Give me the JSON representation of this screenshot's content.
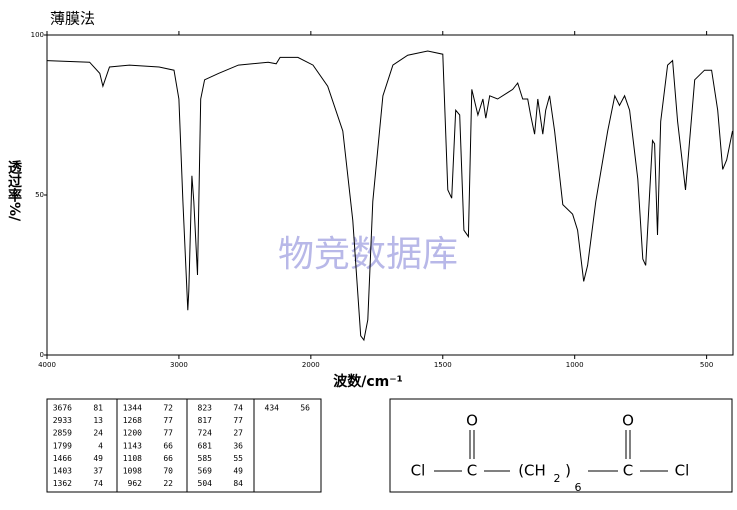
{
  "chart_data": {
    "type": "line",
    "title": "薄膜法",
    "x_label": "波数/cm⁻¹",
    "y_label": "透过率%/",
    "watermark": "物竞数据库",
    "xlim": [
      4000,
      400
    ],
    "xticks": [
      4000,
      3000,
      2000,
      1500,
      1000,
      500
    ],
    "ylim": [
      0,
      100
    ],
    "yticks": [
      0,
      50,
      100
    ],
    "color": "#000000",
    "x": [
      4000,
      3677,
      3600,
      3576,
      3526,
      3376,
      3150,
      3037,
      3000,
      2970,
      2933,
      2925,
      2902,
      2887,
      2859,
      2835,
      2805,
      2700,
      2549,
      2323,
      2263,
      2233,
      2098,
      1992,
      1936,
      1879,
      1841,
      1811,
      1799,
      1784,
      1765,
      1727,
      1689,
      1633,
      1557,
      1500,
      1481,
      1466,
      1451,
      1436,
      1420,
      1403,
      1390,
      1367,
      1348,
      1337,
      1322,
      1292,
      1235,
      1216,
      1197,
      1178,
      1167,
      1152,
      1140,
      1121,
      1110,
      1095,
      1076,
      1045,
      1008,
      989,
      966,
      951,
      920,
      875,
      848,
      830,
      811,
      792,
      761,
      742,
      731,
      705,
      697,
      686,
      674,
      648,
      629,
      610,
      580,
      545,
      508,
      481,
      458,
      439,
      424,
      402
    ],
    "values": [
      92,
      91.5,
      88,
      84,
      90,
      90.6,
      90,
      89,
      80,
      48,
      14,
      20,
      56,
      48,
      25,
      80,
      86,
      88,
      90.6,
      91.5,
      91,
      93,
      93,
      90.6,
      84,
      70,
      42,
      6,
      4.7,
      11,
      48,
      81,
      90.6,
      93.7,
      95,
      94,
      51.6,
      49,
      76.5,
      75,
      39,
      37,
      83,
      75,
      80,
      74,
      81,
      80,
      83,
      85,
      80,
      80,
      75,
      69,
      80,
      69,
      76.5,
      81,
      70,
      47,
      44,
      39,
      23,
      28,
      48,
      70,
      81,
      78,
      81,
      76.5,
      55,
      30,
      28,
      67,
      66,
      37.5,
      73,
      90.6,
      92,
      73,
      51.6,
      86,
      89,
      89,
      76.5,
      58,
      61,
      70
    ]
  },
  "peak_table": {
    "columns": [
      [
        [
          3676,
          81
        ],
        [
          2933,
          13
        ],
        [
          2859,
          24
        ],
        [
          1799,
          4
        ],
        [
          1466,
          49
        ],
        [
          1403,
          37
        ],
        [
          1362,
          74
        ]
      ],
      [
        [
          1344,
          72
        ],
        [
          1268,
          77
        ],
        [
          1200,
          77
        ],
        [
          1143,
          66
        ],
        [
          1108,
          66
        ],
        [
          1098,
          70
        ],
        [
          962,
          22
        ]
      ],
      [
        [
          823,
          74
        ],
        [
          817,
          77
        ],
        [
          724,
          27
        ],
        [
          681,
          36
        ],
        [
          585,
          55
        ],
        [
          569,
          49
        ],
        [
          504,
          84
        ]
      ],
      [
        [
          434,
          56
        ]
      ]
    ]
  },
  "structure": {
    "atoms": [
      "Cl",
      "C",
      "(CH",
      "2",
      ")",
      "6",
      "C",
      "Cl"
    ],
    "oxygens": [
      "O",
      "O"
    ]
  }
}
